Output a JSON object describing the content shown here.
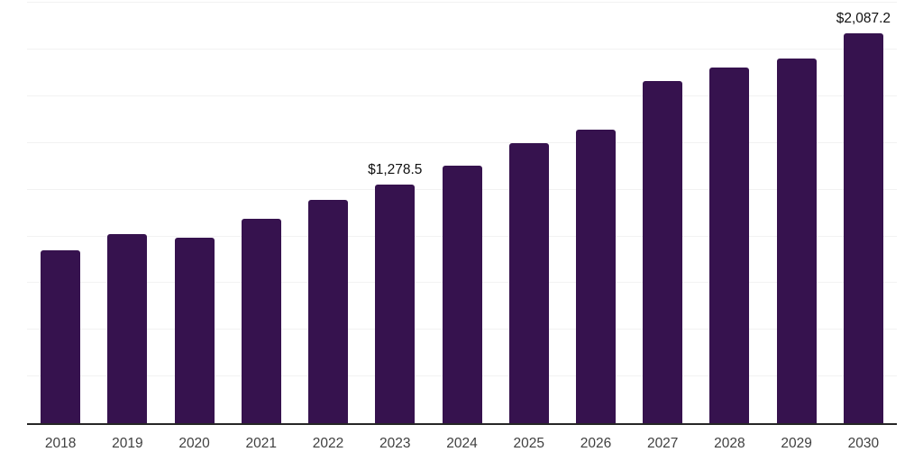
{
  "chart_data": {
    "type": "bar",
    "title": "",
    "xlabel": "",
    "ylabel": "",
    "categories": [
      "2018",
      "2019",
      "2020",
      "2021",
      "2022",
      "2023",
      "2024",
      "2025",
      "2026",
      "2027",
      "2028",
      "2029",
      "2030"
    ],
    "values": [
      925,
      1012,
      995,
      1095,
      1193,
      1278.5,
      1380,
      1500,
      1570,
      1832,
      1905,
      1950,
      2087.2
    ],
    "annotations": [
      {
        "category": "2023",
        "text": "$1,278.5"
      },
      {
        "category": "2030",
        "text": "$2,087.2"
      }
    ],
    "ylim": [
      0,
      2265
    ],
    "gridline_step": 250,
    "grid": "horizontal-only",
    "legend": "none",
    "y_axis_labels": "none"
  },
  "colors": {
    "bar": "#36124E",
    "gridline": "#f2f2f2",
    "axis_line": "#262626",
    "x_label_text": "#404040",
    "value_label_text": "#111111",
    "background": "#ffffff"
  }
}
